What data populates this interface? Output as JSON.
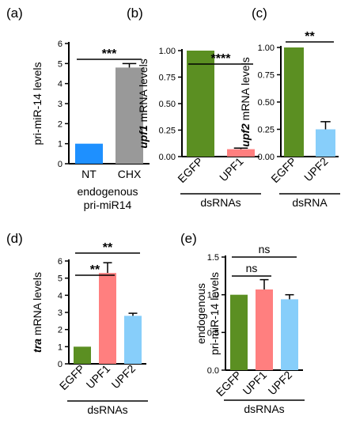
{
  "chart_data": [
    {
      "panel": "(a)",
      "type": "bar",
      "categories": [
        "NT",
        "CHX"
      ],
      "values": [
        1.0,
        4.8
      ],
      "errors": [
        0,
        0.2
      ],
      "colors": [
        "#1e90ff",
        "#999999"
      ],
      "ylabel": "pri-miR-14 levels",
      "ylabel_parts": [
        {
          "text": "pri-miR-14 levels",
          "italic": false
        }
      ],
      "ylim": [
        0,
        6
      ],
      "yticks": [
        "0",
        "1",
        "2",
        "3",
        "4",
        "5",
        "6"
      ],
      "group_label": [
        "endogenous",
        "pri-miR14"
      ],
      "significance": [
        {
          "from": 0,
          "to": 1,
          "label": "***"
        }
      ]
    },
    {
      "panel": "(b)",
      "type": "bar",
      "categories": [
        "EGFP",
        "UPF1"
      ],
      "values": [
        1.0,
        0.07
      ],
      "errors": [
        0,
        0.01
      ],
      "colors": [
        "#5b8f22",
        "#ff7f7f"
      ],
      "ylabel": "upf1 mRNA levels",
      "ylabel_parts": [
        {
          "text": "upf1",
          "italic": true
        },
        {
          "text": " mRNA levels",
          "italic": false
        }
      ],
      "ylim": [
        0,
        1.0
      ],
      "yticks": [
        "0.00",
        "0.25",
        "0.50",
        "0.75",
        "1.00"
      ],
      "group_label": [
        "dsRNAs"
      ],
      "significance": [
        {
          "from": 0,
          "to": 1,
          "label": "****"
        }
      ]
    },
    {
      "panel": "(c)",
      "type": "bar",
      "categories": [
        "EGFP",
        "UPF2"
      ],
      "values": [
        1.0,
        0.25
      ],
      "errors": [
        0,
        0.07
      ],
      "colors": [
        "#5b8f22",
        "#87cefa"
      ],
      "ylabel": "upf2 mRNA levels",
      "ylabel_parts": [
        {
          "text": "upf2",
          "italic": true
        },
        {
          "text": " mRNA levels",
          "italic": false
        }
      ],
      "ylim": [
        0,
        1.0
      ],
      "yticks": [
        "0.00",
        "0.25",
        "0.50",
        "0.75",
        "1.00"
      ],
      "group_label": [
        "dsRNA"
      ],
      "significance": [
        {
          "from": 0,
          "to": 1,
          "label": "**"
        }
      ]
    },
    {
      "panel": "(d)",
      "type": "bar",
      "categories": [
        "EGFP",
        "UPF1",
        "UPF2"
      ],
      "values": [
        1.0,
        5.3,
        2.8
      ],
      "errors": [
        0,
        0.6,
        0.15
      ],
      "colors": [
        "#5b8f22",
        "#ff7f7f",
        "#87cefa"
      ],
      "ylabel": "tra mRNA levels",
      "ylabel_parts": [
        {
          "text": "tra",
          "italic": true
        },
        {
          "text": " mRNA levels",
          "italic": false
        }
      ],
      "ylim": [
        0,
        6
      ],
      "yticks": [
        "0",
        "1",
        "2",
        "3",
        "4",
        "5",
        "6"
      ],
      "group_label": [
        "dsRNAs"
      ],
      "significance": [
        {
          "from": 0,
          "to": 1,
          "label": "**"
        },
        {
          "from": 0,
          "to": 2,
          "label": "**"
        }
      ]
    },
    {
      "panel": "(e)",
      "type": "bar",
      "categories": [
        "EGFP",
        "UPF1",
        "UPF2"
      ],
      "values": [
        1.0,
        1.07,
        0.94
      ],
      "errors": [
        0,
        0.13,
        0.06
      ],
      "colors": [
        "#5b8f22",
        "#ff7f7f",
        "#87cefa"
      ],
      "ylabel": "endogenous pri-miR-14 levels",
      "ylabel_lines": [
        "endogenous",
        "pri-miR-14 levels"
      ],
      "ylim": [
        0,
        1.5
      ],
      "yticks": [
        "0.0",
        "0.5",
        "1.0",
        "1.5"
      ],
      "group_label": [
        "dsRNAs"
      ],
      "significance": [
        {
          "from": 0,
          "to": 1,
          "label": "ns"
        },
        {
          "from": 0,
          "to": 2,
          "label": "ns"
        }
      ]
    }
  ]
}
